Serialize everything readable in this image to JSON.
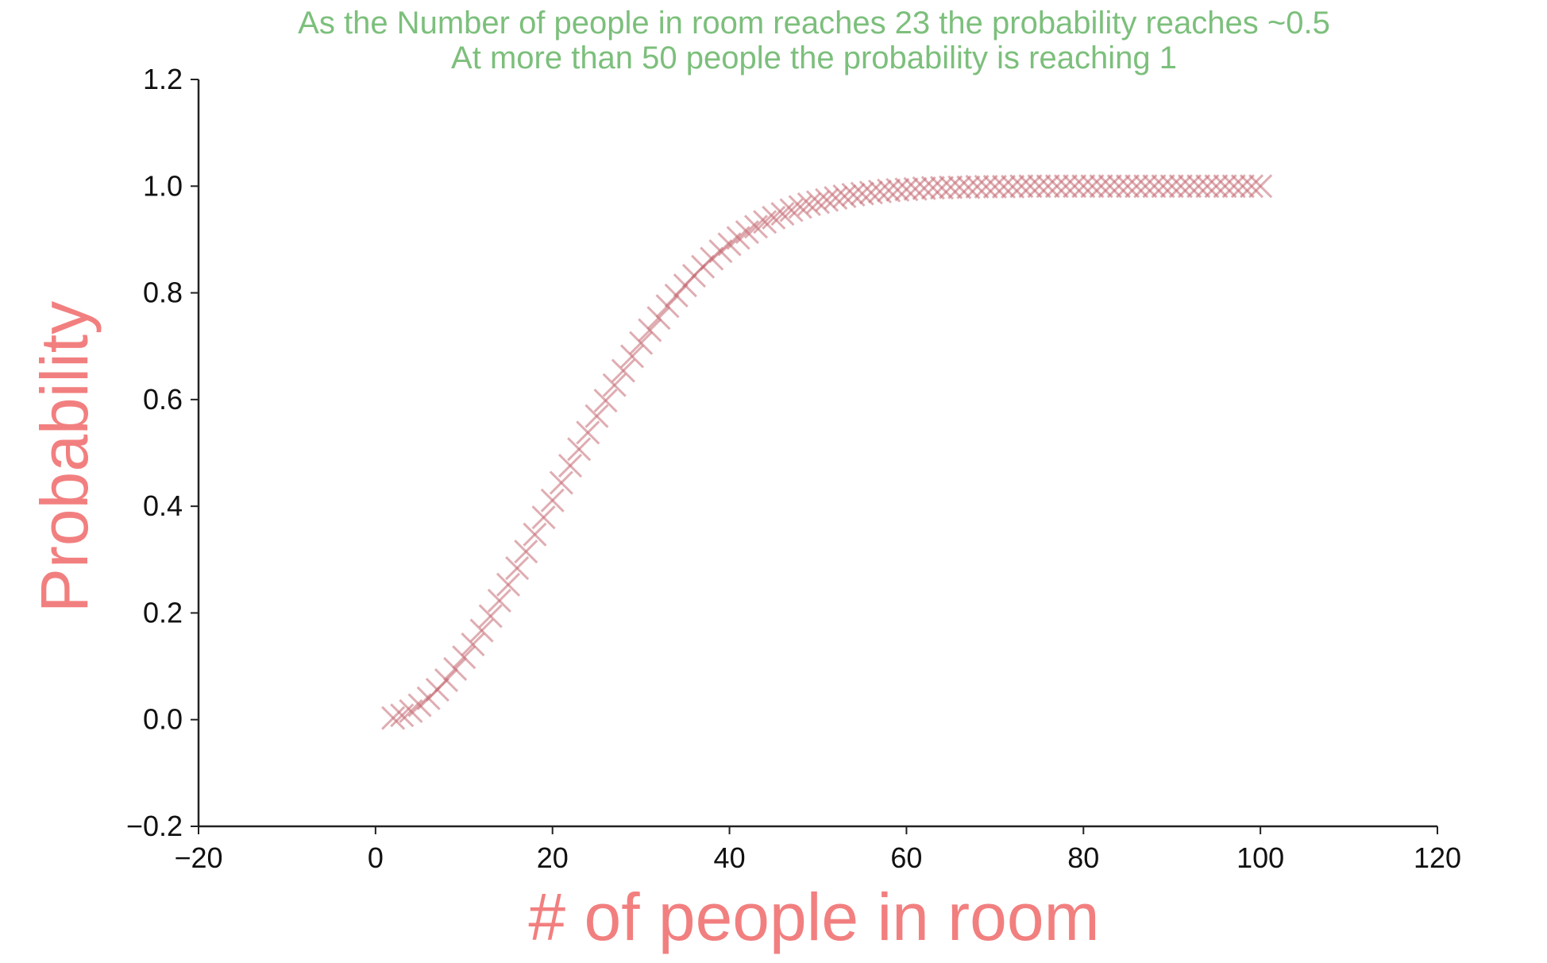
{
  "chart_data": {
    "type": "scatter",
    "title_lines": [
      "As the Number of people in room reaches 23 the probability reaches ~0.5",
      "At more than 50 people the probability is reaching 1"
    ],
    "xlabel": "# of people in room",
    "ylabel": "Probability",
    "xlim": [
      -20,
      120
    ],
    "ylim": [
      -0.2,
      1.2
    ],
    "x_ticks": [
      -20,
      0,
      20,
      40,
      60,
      80,
      100,
      120
    ],
    "x_tick_labels": [
      "−20",
      "0",
      "20",
      "40",
      "60",
      "80",
      "100",
      "120"
    ],
    "y_ticks": [
      -0.2,
      0.0,
      0.2,
      0.4,
      0.6,
      0.8,
      1.0,
      1.2
    ],
    "y_tick_labels": [
      "−0.2",
      "0.0",
      "0.2",
      "0.4",
      "0.6",
      "0.8",
      "1.0",
      "1.2"
    ],
    "marker": "x",
    "grid": false,
    "colors": {
      "title": "#7cbf7c",
      "axis_label": "#f27f7f",
      "marker": "#c46a72",
      "axis": "#222222"
    },
    "series": [
      {
        "x": [
          2,
          3,
          4,
          5,
          6,
          7,
          8,
          9,
          10,
          11,
          12,
          13,
          14,
          15,
          16,
          17,
          18,
          19,
          20,
          21,
          22,
          23,
          24,
          25,
          26,
          27,
          28,
          29,
          30,
          31,
          32,
          33,
          34,
          35,
          36,
          37,
          38,
          39,
          40,
          41,
          42,
          43,
          44,
          45,
          46,
          47,
          48,
          49,
          50,
          51,
          52,
          53,
          54,
          55,
          56,
          57,
          58,
          59,
          60,
          61,
          62,
          63,
          64,
          65,
          66,
          67,
          68,
          69,
          70,
          71,
          72,
          73,
          74,
          75,
          76,
          77,
          78,
          79,
          80,
          81,
          82,
          83,
          84,
          85,
          86,
          87,
          88,
          89,
          90,
          91,
          92,
          93,
          94,
          95,
          96,
          97,
          98,
          99,
          100
        ],
        "y": [
          0.003,
          0.008,
          0.016,
          0.027,
          0.04,
          0.056,
          0.074,
          0.095,
          0.117,
          0.141,
          0.167,
          0.194,
          0.223,
          0.253,
          0.284,
          0.315,
          0.347,
          0.379,
          0.411,
          0.444,
          0.476,
          0.507,
          0.538,
          0.569,
          0.598,
          0.627,
          0.654,
          0.681,
          0.706,
          0.73,
          0.753,
          0.775,
          0.795,
          0.814,
          0.832,
          0.849,
          0.864,
          0.878,
          0.891,
          0.903,
          0.914,
          0.924,
          0.933,
          0.941,
          0.948,
          0.955,
          0.961,
          0.966,
          0.97,
          0.974,
          0.978,
          0.981,
          0.984,
          0.986,
          0.988,
          0.99,
          0.992,
          0.993,
          0.994,
          0.995,
          0.996,
          0.997,
          0.997,
          0.998,
          0.998,
          0.998,
          0.999,
          0.999,
          0.999,
          0.999,
          0.999,
          1.0,
          1.0,
          1.0,
          1.0,
          1.0,
          1.0,
          1.0,
          1.0,
          1.0,
          1.0,
          1.0,
          1.0,
          1.0,
          1.0,
          1.0,
          1.0,
          1.0,
          1.0,
          1.0,
          1.0,
          1.0,
          1.0,
          1.0,
          1.0,
          1.0,
          1.0,
          1.0,
          1.0
        ]
      }
    ]
  }
}
